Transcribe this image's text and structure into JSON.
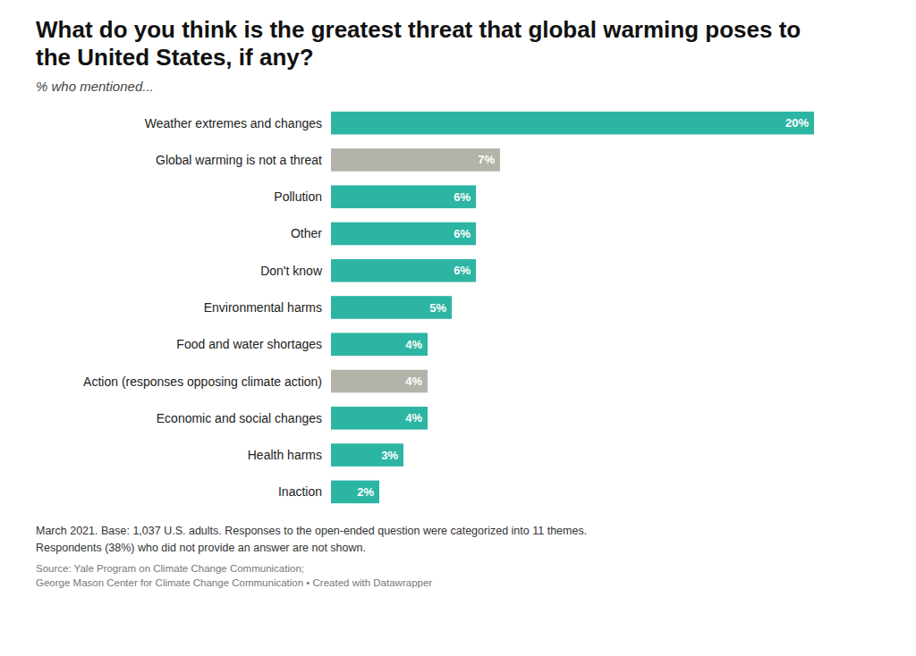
{
  "chart_data": {
    "type": "bar",
    "orientation": "horizontal",
    "title": "What do you think is the greatest threat that global warming poses to the United States, if any?",
    "subtitle": "% who mentioned...",
    "categories": [
      "Weather extremes and changes",
      "Global warming is not a threat",
      "Pollution",
      "Other",
      "Don't know",
      "Environmental harms",
      "Food and water shortages",
      "Action (responses opposing climate action)",
      "Economic and social changes",
      "Health harms",
      "Inaction"
    ],
    "values": [
      20,
      7,
      6,
      6,
      6,
      5,
      4,
      4,
      4,
      3,
      2
    ],
    "value_labels": [
      "20%",
      "7%",
      "6%",
      "6%",
      "6%",
      "5%",
      "4%",
      "4%",
      "4%",
      "3%",
      "2%"
    ],
    "colors": [
      "#2db5a3",
      "#b3b3aa",
      "#2db5a3",
      "#2db5a3",
      "#2db5a3",
      "#2db5a3",
      "#2db5a3",
      "#b3b3aa",
      "#2db5a3",
      "#2db5a3",
      "#2db5a3"
    ],
    "xlim": [
      0,
      22
    ],
    "data_labels": true,
    "tick_labels": "y",
    "grid": false,
    "notes": [
      "March 2021. Base: 1,037 U.S. adults. Responses to the open-ended question were categorized into 11 themes.",
      "Respondents (38%) who did not provide an answer are not shown."
    ],
    "source": [
      "Source: Yale Program on Climate Change Communication;",
      "George Mason Center for Climate Change Communication • Created with Datawrapper"
    ]
  }
}
